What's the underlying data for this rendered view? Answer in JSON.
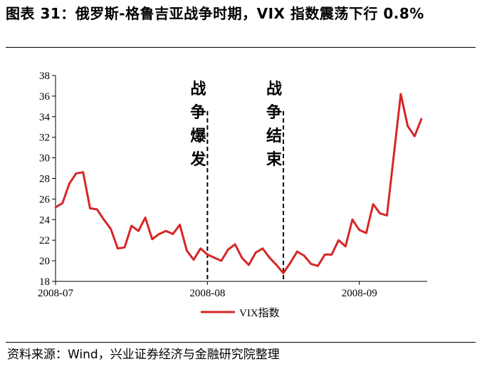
{
  "header": {
    "title": "图表 31：俄罗斯-格鲁吉亚战争时期，VIX 指数震荡下行 0.8%"
  },
  "footer": {
    "source": "资料来源：Wind，兴业证券经济与金融研究院整理"
  },
  "chart_data": {
    "type": "line",
    "title": "",
    "xlabel": "",
    "ylabel": "",
    "ylim": [
      18,
      38
    ],
    "yticks": [
      18,
      20,
      22,
      24,
      26,
      28,
      30,
      32,
      34,
      36,
      38
    ],
    "xticks": [
      {
        "label": "2008-07",
        "index": 0
      },
      {
        "label": "2008-08",
        "index": 22
      },
      {
        "label": "2008-09",
        "index": 44
      }
    ],
    "grid": false,
    "legend_position": "bottom",
    "line_color": "#d62728",
    "series": [
      {
        "name": "VIX指数",
        "values": [
          25.2,
          25.6,
          27.5,
          28.5,
          28.6,
          25.1,
          25.0,
          24.0,
          23.1,
          21.2,
          21.3,
          23.4,
          22.9,
          24.2,
          22.1,
          22.6,
          22.9,
          22.6,
          23.5,
          21.0,
          20.1,
          21.2,
          20.6,
          20.3,
          20.0,
          21.1,
          21.6,
          20.3,
          19.6,
          20.8,
          21.2,
          20.3,
          19.6,
          18.8,
          19.8,
          20.9,
          20.5,
          19.7,
          19.5,
          20.6,
          20.6,
          22.0,
          21.4,
          24.0,
          23.0,
          22.7,
          25.5,
          24.6,
          24.4,
          30.3,
          36.2,
          33.1,
          32.1,
          33.8
        ]
      }
    ],
    "annotations": [
      {
        "label": "战争爆发",
        "index": 22
      },
      {
        "label": "战争结束",
        "index": 33
      }
    ]
  }
}
